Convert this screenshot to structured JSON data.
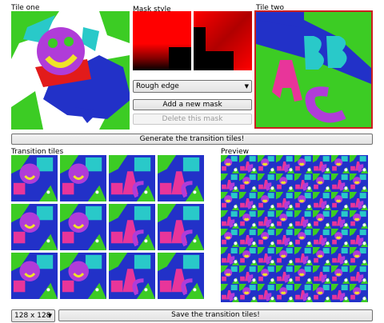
{
  "labels": {
    "tile_one": "Tile one",
    "mask_style": "Mask style",
    "tile_two": "Tile two",
    "transition_tiles": "Transition tiles",
    "preview": "Preview"
  },
  "mask_controls": {
    "style_selected": "Rough edge",
    "add_mask": "Add a new mask",
    "delete_mask": "Delete this mask"
  },
  "generate_button": "Generate the transition tiles!",
  "footer": {
    "size_selected": "128 x 128",
    "save_button": "Save the transition tiles!"
  },
  "colors": {
    "tile_two_border": "#cc1f1f",
    "green": "#3ccc24",
    "blue": "#2231c8",
    "purple": "#b03cd8",
    "pink": "#e8359a",
    "cyan": "#29c9c9",
    "red": "#ff0000"
  },
  "icons": {
    "dropdown_arrow": "chevron-down-icon"
  }
}
